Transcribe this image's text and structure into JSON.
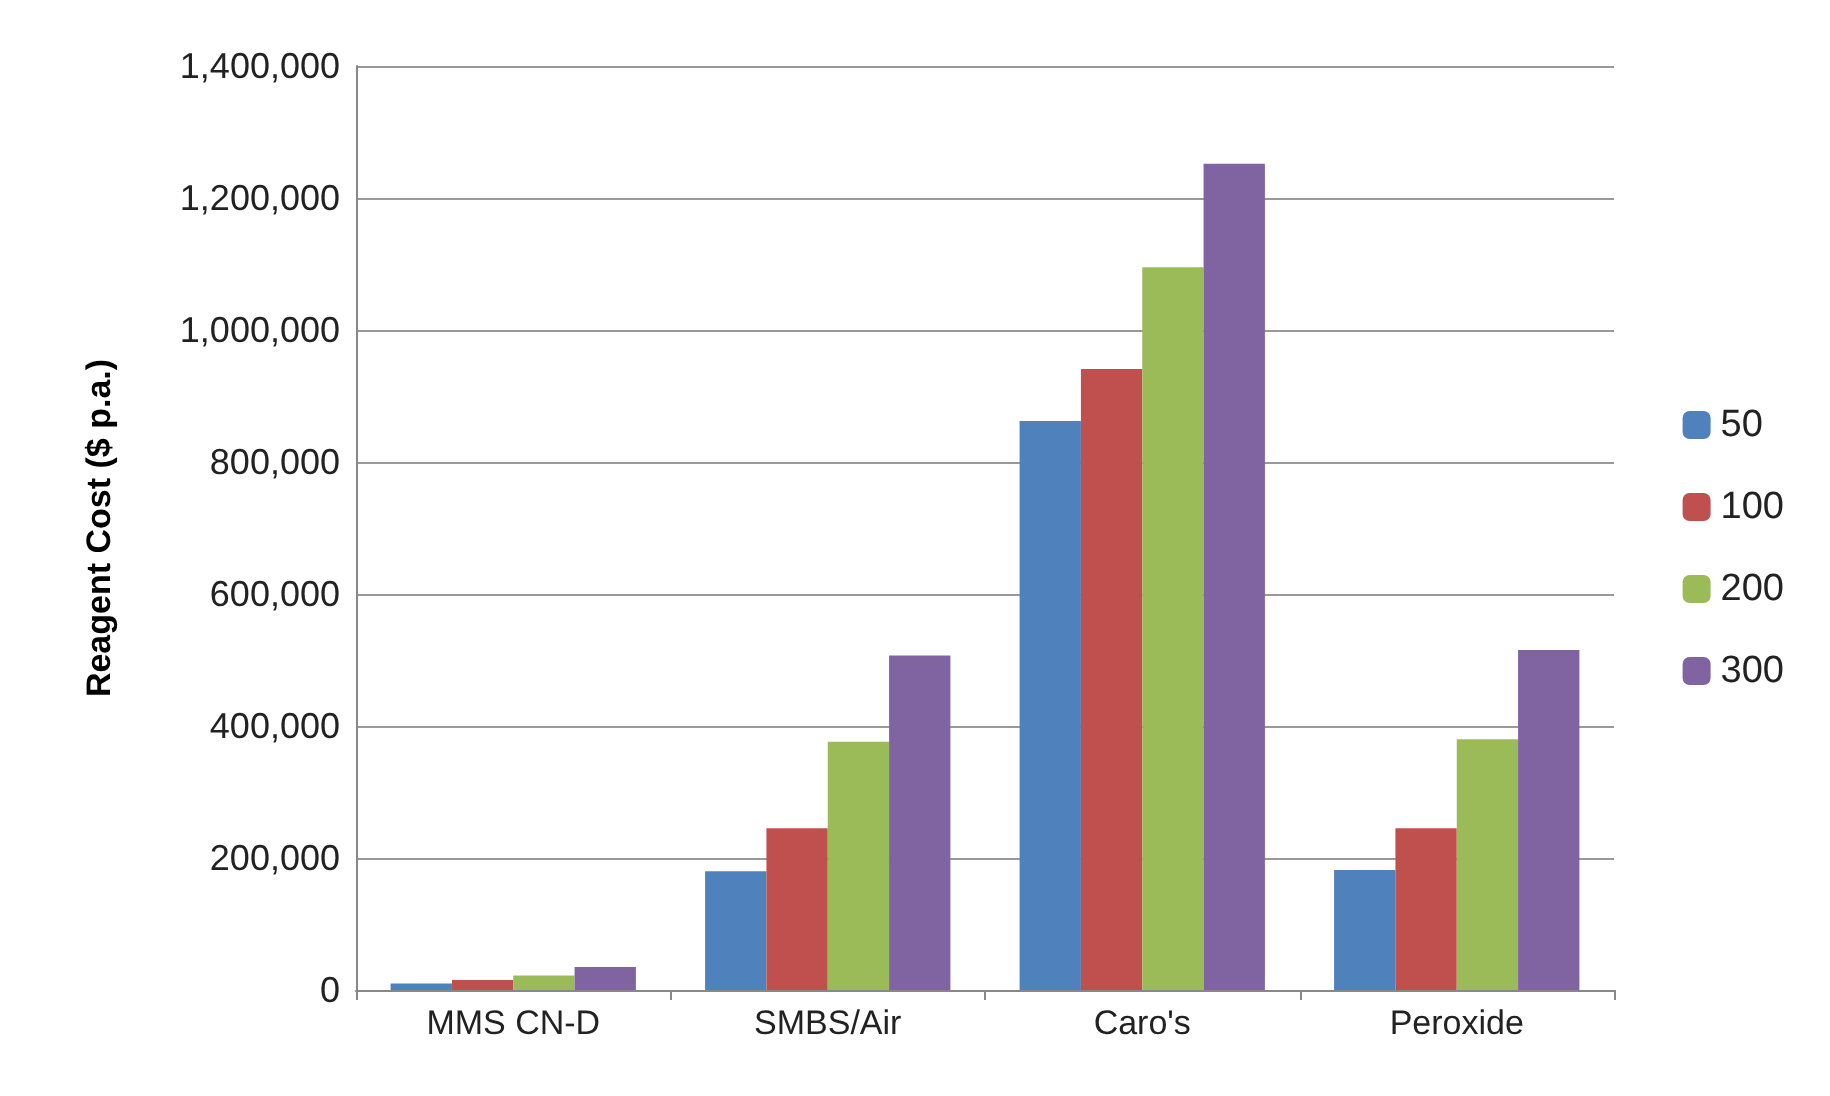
{
  "chart_data": {
    "type": "bar",
    "ylabel": "Reagent Cost ($ p.a.)",
    "categories": [
      "MMS CN-D",
      "SMBS/Air",
      "Caro's",
      "Peroxide"
    ],
    "series": [
      {
        "name": "50",
        "color": "#4f81bd",
        "values": [
          10000,
          180000,
          862000,
          182000
        ]
      },
      {
        "name": "100",
        "color": "#c0504d",
        "values": [
          15000,
          245000,
          941000,
          245000
        ]
      },
      {
        "name": "200",
        "color": "#9bbb59",
        "values": [
          22000,
          376000,
          1095000,
          380000
        ]
      },
      {
        "name": "300",
        "color": "#8064a2",
        "values": [
          35000,
          507000,
          1252000,
          515000
        ]
      }
    ],
    "ylim": [
      0,
      1400000
    ],
    "yticks": [
      {
        "value": 0,
        "label": "0"
      },
      {
        "value": 200000,
        "label": "200,000"
      },
      {
        "value": 400000,
        "label": "400,000"
      },
      {
        "value": 600000,
        "label": "600,000"
      },
      {
        "value": 800000,
        "label": "800,000"
      },
      {
        "value": 1000000,
        "label": "1,000,000"
      },
      {
        "value": 1200000,
        "label": "1,200,000"
      },
      {
        "value": 1400000,
        "label": "1,400,000"
      }
    ],
    "grid": "y",
    "legend": "right"
  }
}
